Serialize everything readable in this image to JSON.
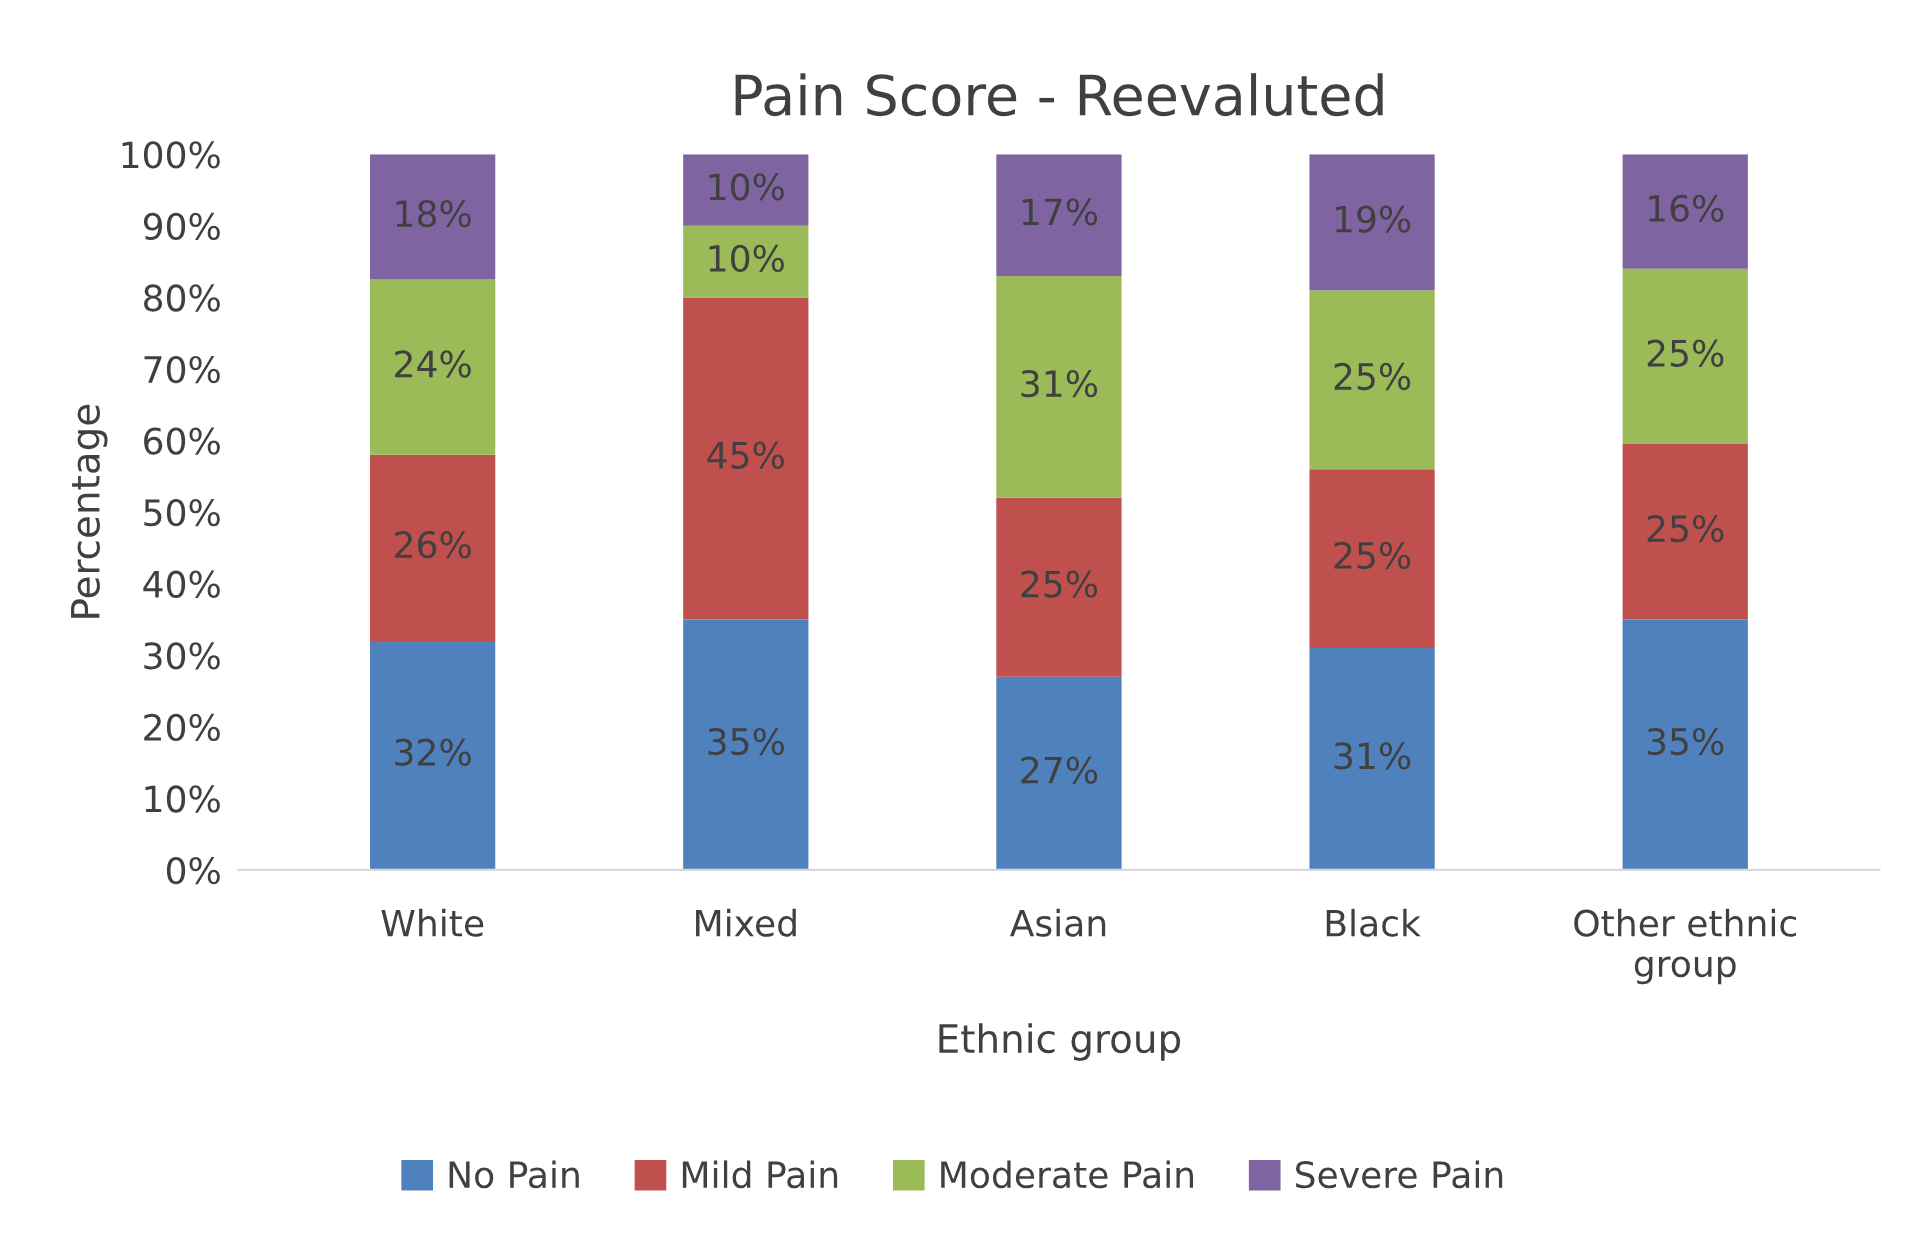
{
  "chart_data": {
    "type": "bar",
    "stacked": true,
    "title": "Pain Score - Reevaluted",
    "xlabel": "Ethnic group",
    "ylabel": "Percentage",
    "categories": [
      "White",
      "Mixed",
      "Asian",
      "Black",
      "Other ethnic\ngroup"
    ],
    "series": [
      {
        "name": "No Pain",
        "color": "#4f81bd",
        "values": [
          32,
          35,
          27,
          31,
          35
        ],
        "value_labels": [
          "32%",
          "35%",
          "27%",
          "31%",
          "35%"
        ]
      },
      {
        "name": "Mild Pain",
        "color": "#c0504d",
        "values": [
          26,
          45,
          25,
          25,
          24.5
        ],
        "value_labels": [
          "26%",
          "45%",
          "25%",
          "25%",
          "25%"
        ]
      },
      {
        "name": "Moderate Pain",
        "color": "#9bbb59",
        "values": [
          24.5,
          10,
          31,
          25,
          24.5
        ],
        "value_labels": [
          "24%",
          "10%",
          "31%",
          "25%",
          "25%"
        ]
      },
      {
        "name": "Severe Pain",
        "color": "#8064a2",
        "values": [
          17.5,
          10,
          17,
          19,
          16
        ],
        "value_labels": [
          "18%",
          "10%",
          "17%",
          "19%",
          "16%"
        ]
      }
    ],
    "ylim": [
      0,
      100
    ],
    "yticks": [
      {
        "value": 0,
        "label": "0%"
      },
      {
        "value": 10,
        "label": "10%"
      },
      {
        "value": 20,
        "label": "20%"
      },
      {
        "value": 30,
        "label": "30%"
      },
      {
        "value": 40,
        "label": "40%"
      },
      {
        "value": 50,
        "label": "50%"
      },
      {
        "value": 60,
        "label": "60%"
      },
      {
        "value": 70,
        "label": "70%"
      },
      {
        "value": 80,
        "label": "80%"
      },
      {
        "value": 90,
        "label": "90%"
      },
      {
        "value": 100,
        "label": "100%"
      }
    ],
    "grid": false,
    "legend": "bottom"
  }
}
